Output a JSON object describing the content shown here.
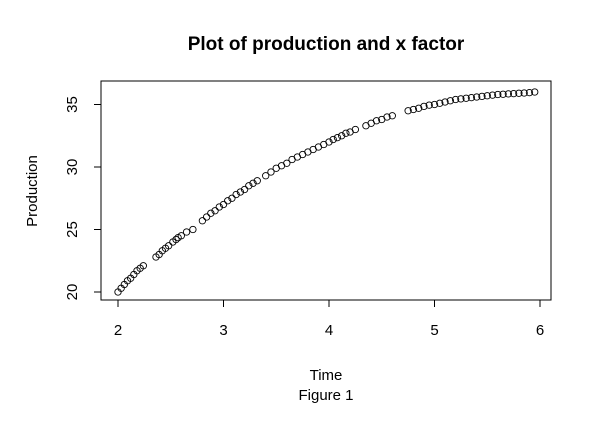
{
  "chart_data": {
    "type": "scatter",
    "title": "Plot of production and x factor",
    "xlabel": "Time",
    "ylabel": "Production",
    "caption": "Figure 1",
    "xlim": [
      2,
      6
    ],
    "ylim": [
      20,
      36
    ],
    "x_ticks": [
      "2",
      "3",
      "4",
      "5",
      "6"
    ],
    "y_ticks": [
      "20",
      "25",
      "30",
      "35"
    ],
    "grid": false,
    "legend": "none",
    "marker": "open-circle",
    "colors": {
      "points": "#000000",
      "axes": "#000000",
      "background": "#ffffff"
    },
    "series": [
      {
        "x": [
          2.0,
          2.03,
          2.06,
          2.09,
          2.12,
          2.15,
          2.18,
          2.21,
          2.24,
          2.36,
          2.39,
          2.42,
          2.45,
          2.48,
          2.52,
          2.55,
          2.57,
          2.6,
          2.65,
          2.71,
          2.8,
          2.84,
          2.88,
          2.92,
          2.96,
          3.0,
          3.04,
          3.08,
          3.12,
          3.16,
          3.2,
          3.24,
          3.28,
          3.32,
          3.4,
          3.45,
          3.5,
          3.55,
          3.6,
          3.65,
          3.7,
          3.75,
          3.8,
          3.85,
          3.9,
          3.95,
          4.0,
          4.04,
          4.08,
          4.12,
          4.16,
          4.2,
          4.25,
          4.35,
          4.4,
          4.45,
          4.5,
          4.55,
          4.6,
          4.75,
          4.8,
          4.85,
          4.9,
          4.95,
          5.0,
          5.05,
          5.1,
          5.15,
          5.2,
          5.25,
          5.3,
          5.35,
          5.4,
          5.45,
          5.5,
          5.55,
          5.6,
          5.65,
          5.7,
          5.75,
          5.8,
          5.85,
          5.9,
          5.95
        ],
        "y": [
          20.0,
          20.3,
          20.6,
          20.9,
          21.1,
          21.4,
          21.7,
          21.9,
          22.1,
          22.8,
          23.0,
          23.3,
          23.5,
          23.7,
          24.0,
          24.2,
          24.35,
          24.5,
          24.8,
          25.0,
          25.7,
          26.0,
          26.3,
          26.5,
          26.8,
          27.0,
          27.3,
          27.5,
          27.8,
          28.0,
          28.2,
          28.5,
          28.7,
          28.9,
          29.3,
          29.6,
          29.9,
          30.1,
          30.3,
          30.6,
          30.8,
          31.0,
          31.2,
          31.4,
          31.6,
          31.8,
          32.0,
          32.2,
          32.35,
          32.5,
          32.7,
          32.8,
          33.0,
          33.3,
          33.5,
          33.7,
          33.8,
          34.0,
          34.1,
          34.5,
          34.6,
          34.7,
          34.85,
          34.95,
          35.0,
          35.1,
          35.2,
          35.3,
          35.4,
          35.45,
          35.5,
          35.55,
          35.6,
          35.65,
          35.7,
          35.75,
          35.8,
          35.82,
          35.85,
          35.87,
          35.9,
          35.92,
          35.95,
          36.0
        ]
      }
    ]
  }
}
